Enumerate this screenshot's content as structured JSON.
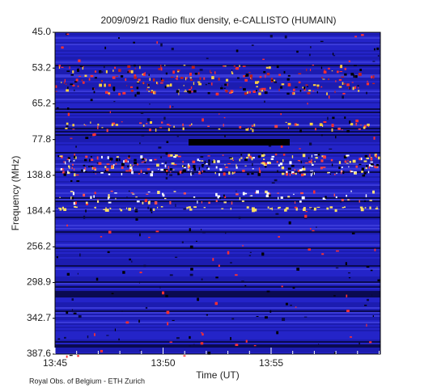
{
  "chart_data": {
    "type": "spectrogram",
    "title": "2009/09/21  Radio flux density, e-CALLISTO (HUMAIN)",
    "x_label": "Time (UT)",
    "y_label": "Frequency (MHz)",
    "xticks": [
      "13:45",
      "13:50",
      "13:55"
    ],
    "y_categories": [
      "45.0",
      "53.2",
      "65.2",
      "77.8",
      "138.8",
      "184.4",
      "256.2",
      "298.9",
      "342.7",
      "387.6"
    ],
    "footer": "Royal Obs. of Belgium - ETH Zurich"
  }
}
